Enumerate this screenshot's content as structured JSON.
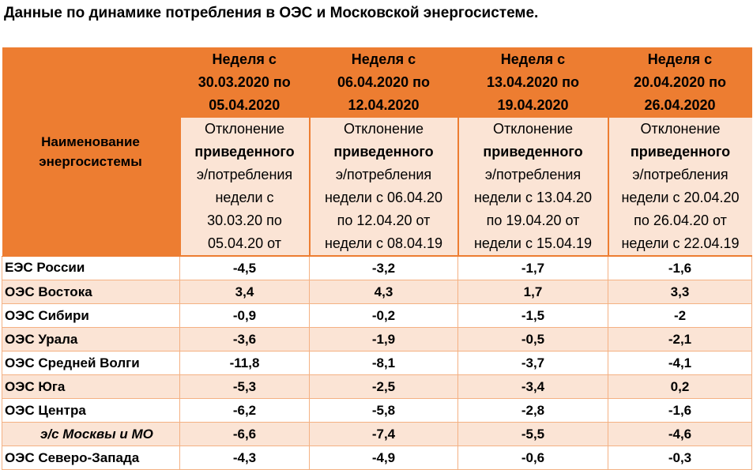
{
  "title": "Данные по динамике потребления в ОЭС и Московской энергосистеме.",
  "table": {
    "name_header": "Наименование энергосистемы",
    "weeks": [
      {
        "label_lines": [
          "Неделя с",
          "30.03.2020 по",
          "05.04.2020"
        ],
        "desc_pre": "Отклонение",
        "desc_bold": "приведенного",
        "desc_lines": [
          "э/потребления",
          "недели с",
          "30.03.20 по",
          "05.04.20 от"
        ]
      },
      {
        "label_lines": [
          "Неделя с",
          "06.04.2020 по",
          "12.04.2020"
        ],
        "desc_pre": "Отклонение",
        "desc_bold": "приведенного",
        "desc_lines": [
          "э/потребления",
          "недели с 06.04.20",
          "по 12.04.20 от",
          "недели с 08.04.19"
        ]
      },
      {
        "label_lines": [
          "Неделя с",
          "13.04.2020 по",
          "19.04.2020"
        ],
        "desc_pre": "Отклонение",
        "desc_bold": "приведенного",
        "desc_lines": [
          "э/потребления",
          "недели с 13.04.20",
          "по 19.04.20 от",
          "недели с 15.04.19"
        ]
      },
      {
        "label_lines": [
          "Неделя с",
          "20.04.2020 по",
          "26.04.2020"
        ],
        "desc_pre": "Отклонение",
        "desc_bold": "приведенного",
        "desc_lines": [
          "э/потребления",
          "недели с 20.04.20",
          "по 26.04.20 от",
          "недели с 22.04.19"
        ]
      }
    ],
    "rows": [
      {
        "name": "ЕЭС России",
        "values": [
          "-4,5",
          "-3,2",
          "-1,7",
          "-1,6"
        ]
      },
      {
        "name": "ОЭС Востока",
        "values": [
          "3,4",
          "4,3",
          "1,7",
          "3,3"
        ]
      },
      {
        "name": "ОЭС Сибири",
        "values": [
          "-0,9",
          "-0,2",
          "-1,5",
          "-2"
        ]
      },
      {
        "name": "ОЭС Урала",
        "values": [
          "-3,6",
          "-1,9",
          "-0,5",
          "-2,1"
        ]
      },
      {
        "name": "ОЭС Средней Волги",
        "values": [
          "-11,8",
          "-8,1",
          "-3,7",
          "-4,1"
        ]
      },
      {
        "name": "ОЭС Юга",
        "values": [
          "-5,3",
          "-2,5",
          "-3,4",
          "0,2"
        ]
      },
      {
        "name": "ОЭС Центра",
        "values": [
          "-6,2",
          "-5,8",
          "-2,8",
          "-1,6"
        ]
      },
      {
        "name": "э/с Москвы и МО",
        "values": [
          "-6,6",
          "-7,4",
          "-5,5",
          "-4,6"
        ]
      },
      {
        "name": "ОЭС Северо-Запада",
        "values": [
          "-4,3",
          "-4,9",
          "-0,6",
          "-0,3"
        ]
      }
    ]
  },
  "colors": {
    "header_orange": "#ed7d31",
    "light_peach": "#fbe4d5",
    "grid_line": "#f4b183"
  }
}
